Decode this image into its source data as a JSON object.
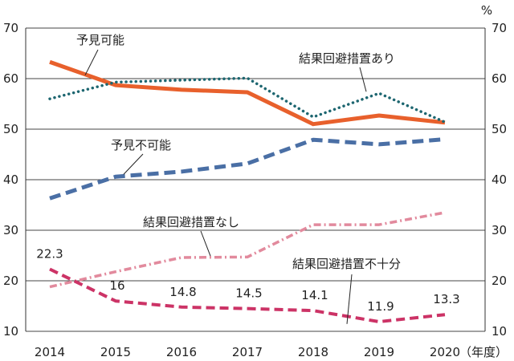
{
  "chart_data": {
    "type": "line",
    "title": "",
    "xlabel": "（年度）",
    "ylabel": "%",
    "x": [
      "2014",
      "2015",
      "2016",
      "2017",
      "2018",
      "2019",
      "2020"
    ],
    "ylim": [
      10,
      70
    ],
    "yticks": [
      10,
      20,
      30,
      40,
      50,
      60,
      70
    ],
    "grid": true,
    "series": [
      {
        "id": "s1",
        "name": "予見可能",
        "color": "#e8602c",
        "style": "solid",
        "values": [
          63.3,
          58.7,
          57.8,
          57.3,
          51.0,
          52.7,
          51.3
        ],
        "data_labels": []
      },
      {
        "id": "s2",
        "name": "結果回避措置あり",
        "color": "#1d6670",
        "style": "dotted",
        "values": [
          56.0,
          59.3,
          59.7,
          60.1,
          52.4,
          57.1,
          51.4
        ],
        "data_labels": []
      },
      {
        "id": "s3",
        "name": "予見不可能",
        "color": "#4a6fa5",
        "style": "dashed",
        "values": [
          36.3,
          40.6,
          41.6,
          43.2,
          47.9,
          47.0,
          48.0
        ],
        "data_labels": []
      },
      {
        "id": "s4",
        "name": "結果回避措置なし",
        "color": "#e28a9d",
        "style": "dashdot",
        "values": [
          18.8,
          21.8,
          24.6,
          24.7,
          31.1,
          31.1,
          33.5
        ],
        "data_labels": []
      },
      {
        "id": "s5",
        "name": "結果回避措置不十分",
        "color": "#cc3366",
        "style": "dashed",
        "values": [
          22.3,
          16.0,
          14.8,
          14.5,
          14.1,
          11.9,
          13.3
        ],
        "data_labels": [
          "22.3",
          "16",
          "14.8",
          "14.5",
          "14.1",
          "11.9",
          "13.3"
        ]
      }
    ]
  }
}
